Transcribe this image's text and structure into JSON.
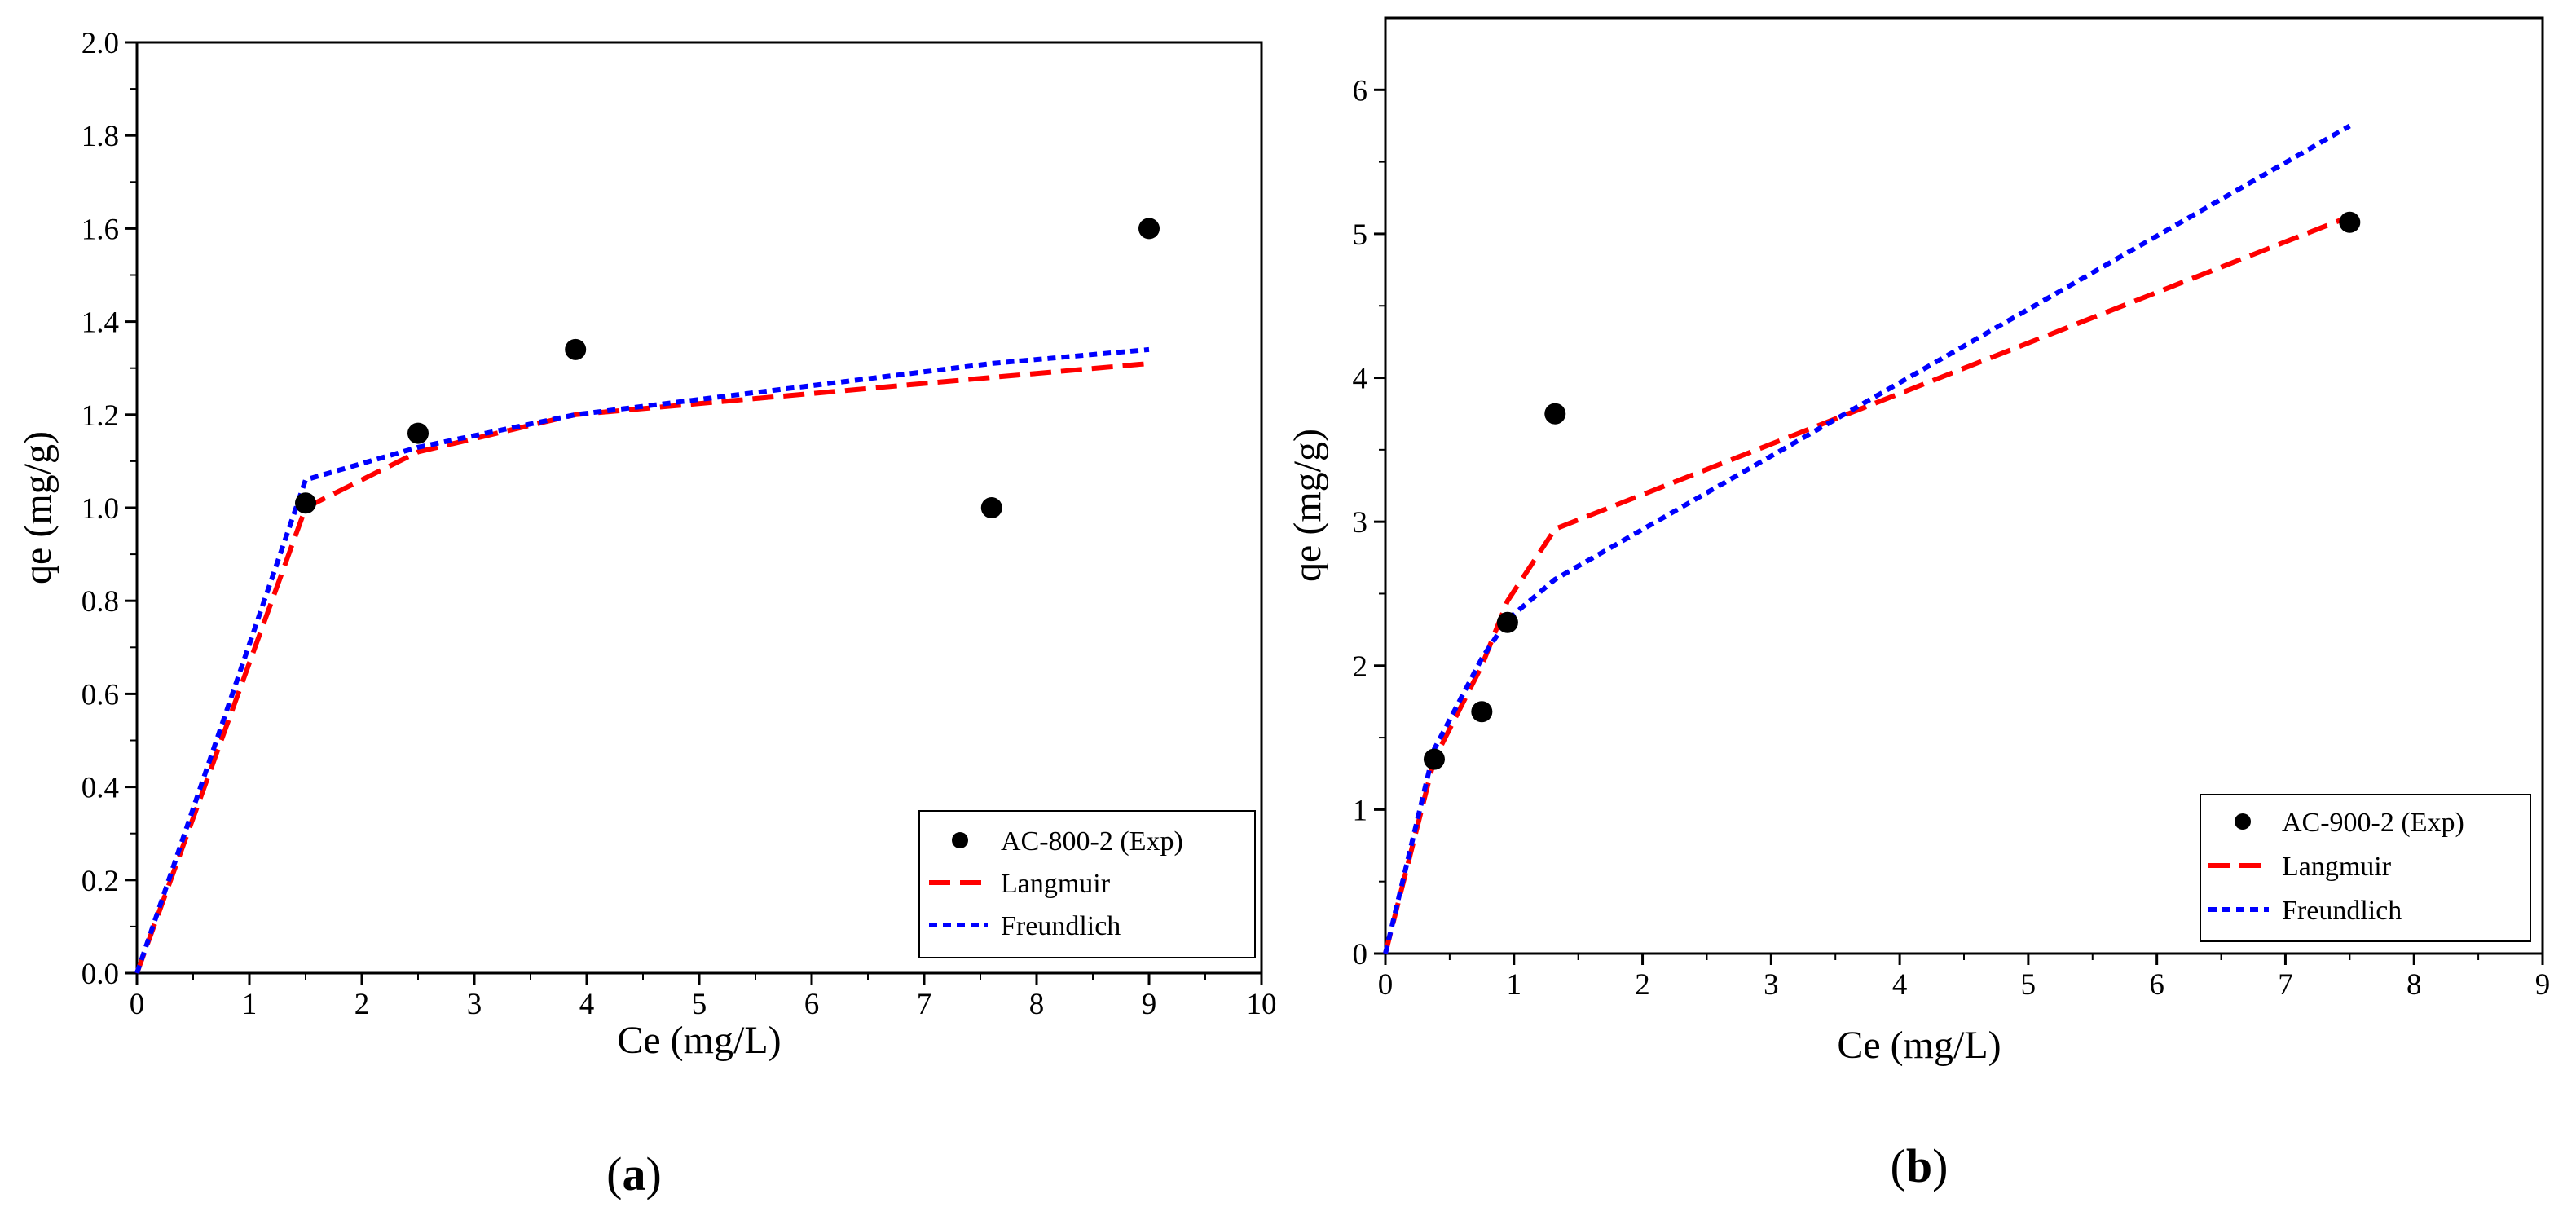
{
  "colors": {
    "exp": "#000000",
    "langmuir": "#ff0000",
    "freundlich": "#0000ff",
    "axis": "#000000"
  },
  "chart_data": [
    {
      "type": "scatter",
      "panel_label_prefix": "(",
      "panel_letter": "a",
      "panel_label_suffix": ")",
      "xlabel": "Ce (mg/L)",
      "ylabel": "qe (mg/g)",
      "xlim": [
        0,
        10
      ],
      "ylim": [
        0,
        2.0
      ],
      "xticks": [
        0,
        1,
        2,
        3,
        4,
        5,
        6,
        7,
        8,
        9,
        10
      ],
      "yticks": [
        0.0,
        0.2,
        0.4,
        0.6,
        0.8,
        1.0,
        1.2,
        1.4,
        1.6,
        1.8,
        2.0
      ],
      "ytick_decimals": 1,
      "grid": false,
      "legend_position": "bottom-right",
      "series": [
        {
          "name": "AC-800-2 (Exp)",
          "kind": "points",
          "color_key": "exp",
          "x": [
            1.5,
            2.5,
            3.9,
            7.6,
            9.0
          ],
          "y": [
            1.01,
            1.16,
            1.34,
            1.0,
            1.6
          ]
        },
        {
          "name": "Langmuir",
          "kind": "line",
          "dash": "long",
          "color_key": "langmuir",
          "x": [
            0,
            1.5,
            2.5,
            3.9,
            7.6,
            9.0
          ],
          "y": [
            0,
            1.0,
            1.12,
            1.2,
            1.28,
            1.31
          ]
        },
        {
          "name": "Freundlich",
          "kind": "line",
          "dash": "short",
          "color_key": "freundlich",
          "x": [
            0,
            1.5,
            2.5,
            3.9,
            7.6,
            9.0
          ],
          "y": [
            0,
            1.06,
            1.13,
            1.2,
            1.31,
            1.34
          ]
        }
      ]
    },
    {
      "type": "scatter",
      "panel_label_prefix": "(",
      "panel_letter": "b",
      "panel_label_suffix": ")",
      "xlabel": "Ce (mg/L)",
      "ylabel": "qe (mg/g)",
      "xlim": [
        0,
        9
      ],
      "ylim": [
        0,
        6.5
      ],
      "xticks": [
        0,
        1,
        2,
        3,
        4,
        5,
        6,
        7,
        8,
        9
      ],
      "yticks": [
        0,
        1,
        2,
        3,
        4,
        5,
        6
      ],
      "ytick_decimals": 0,
      "grid": false,
      "legend_position": "bottom-right",
      "series": [
        {
          "name": "AC-900-2 (Exp)",
          "kind": "points",
          "color_key": "exp",
          "x": [
            0.38,
            0.75,
            0.95,
            1.32,
            7.5
          ],
          "y": [
            1.35,
            1.68,
            2.3,
            3.75,
            5.08
          ]
        },
        {
          "name": "Langmuir",
          "kind": "line",
          "dash": "long",
          "color_key": "langmuir",
          "x": [
            0,
            0.38,
            0.75,
            0.95,
            1.32,
            3.6,
            7.5
          ],
          "y": [
            0,
            1.35,
            2.0,
            2.45,
            2.95,
            3.75,
            5.12
          ]
        },
        {
          "name": "Freundlich",
          "kind": "line",
          "dash": "short",
          "color_key": "freundlich",
          "x": [
            0,
            0.38,
            0.75,
            0.95,
            1.32,
            7.5
          ],
          "y": [
            0,
            1.42,
            2.05,
            2.32,
            2.6,
            5.75
          ]
        }
      ]
    }
  ]
}
